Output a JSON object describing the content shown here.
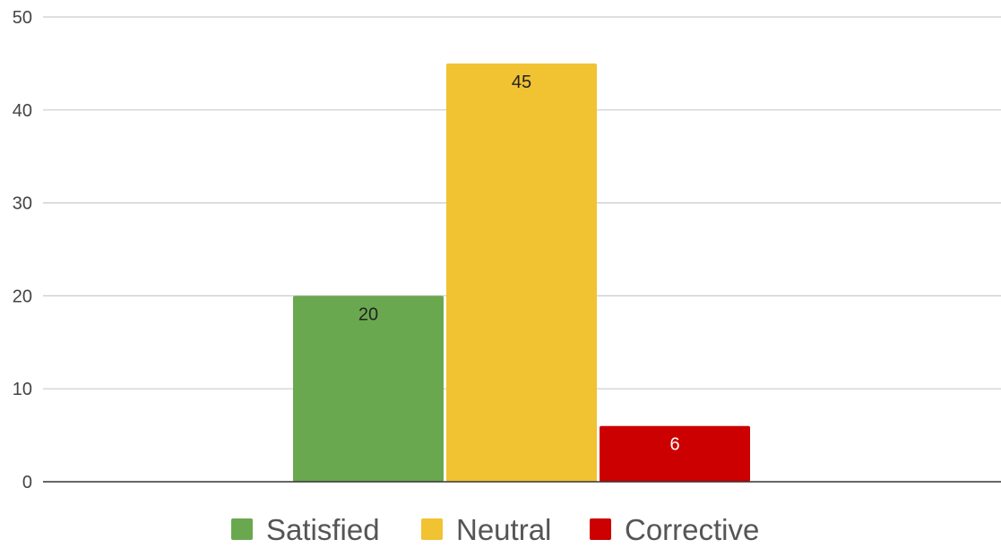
{
  "chart_data": {
    "type": "bar",
    "title": "",
    "xlabel": "",
    "ylabel": "",
    "ylim": [
      0,
      50
    ],
    "yticks": [
      0,
      10,
      20,
      30,
      40,
      50
    ],
    "grid": true,
    "legend_position": "bottom",
    "series": [
      {
        "name": "Satisfied",
        "value": 20,
        "color": "#6aa84f",
        "label_color": "#222222"
      },
      {
        "name": "Neutral",
        "value": 45,
        "color": "#f1c232",
        "label_color": "#222222"
      },
      {
        "name": "Corrective",
        "value": 6,
        "color": "#cc0000",
        "label_color": "#ffffff"
      }
    ]
  }
}
